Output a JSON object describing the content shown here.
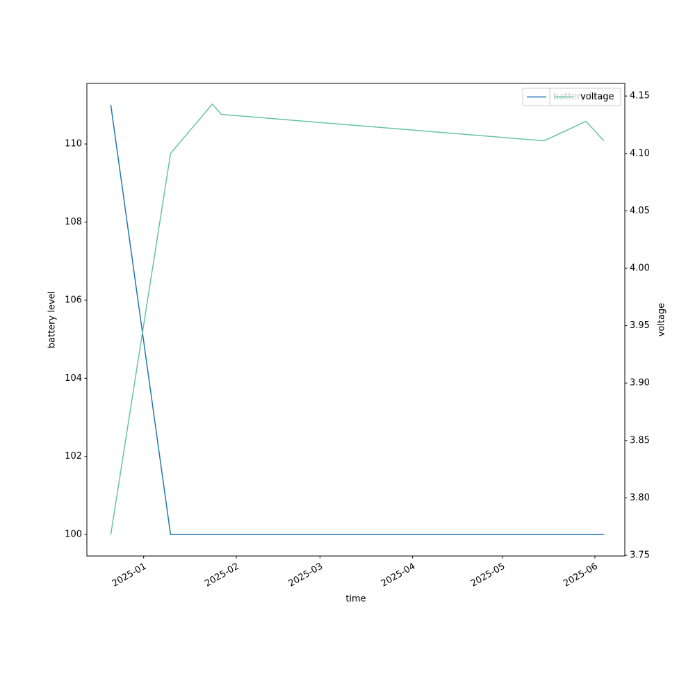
{
  "chart_data": {
    "type": "line",
    "x_label": "time",
    "y_label": "battery level",
    "y2_label": "voltage",
    "x": [
      "2024-12-21",
      "2025-01-10",
      "2025-01-24",
      "2025-01-27",
      "2025-05-15",
      "2025-05-29",
      "2025-06-04"
    ],
    "series": [
      {
        "name": "battery level",
        "color": "#1f77b4",
        "values": [
          111,
          100,
          100,
          100,
          100,
          100,
          100
        ]
      },
      {
        "name": "voltage",
        "color": "#66c2a5",
        "axis": "y2",
        "values": [
          3.768,
          4.1,
          4.143,
          4.134,
          4.111,
          4.128,
          4.111
        ]
      }
    ],
    "xlim": [
      "2024-12-13",
      "2025-06-11"
    ],
    "xticks": [
      "2025-01",
      "2025-02",
      "2025-03",
      "2025-04",
      "2025-05",
      "2025-06"
    ],
    "ylim": [
      99.45,
      111.55
    ],
    "yticks": [
      100,
      102,
      104,
      106,
      108,
      110
    ],
    "y2lim": [
      3.7494,
      4.161
    ],
    "y2ticks": [
      3.75,
      {
        "value": 3.8,
        "label": "3.80"
      },
      3.85,
      {
        "value": 3.9,
        "label": "3.90"
      },
      3.95,
      {
        "value": 4.0,
        "label": "4.00"
      },
      4.05,
      {
        "value": 4.1,
        "label": "4.10"
      },
      4.15
    ],
    "legend": "upper right",
    "grid": false
  }
}
